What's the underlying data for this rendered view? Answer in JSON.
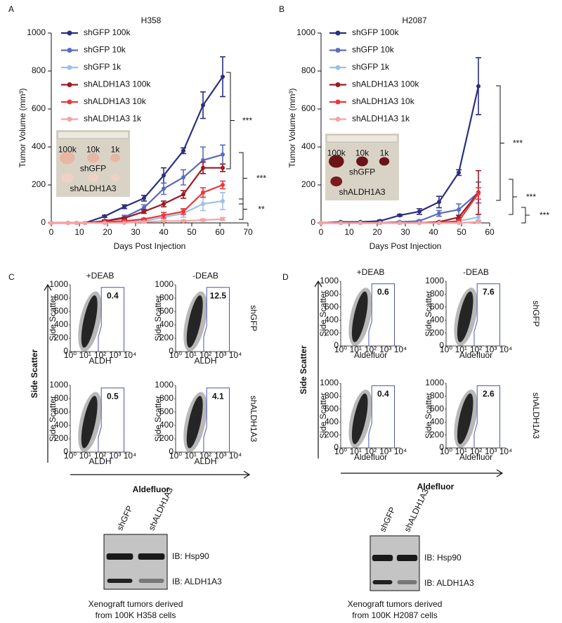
{
  "panel_labels": [
    "A",
    "B",
    "C",
    "D"
  ],
  "chart_data": [
    {
      "type": "line",
      "title": "H358",
      "xlabel": "Days Post Injection",
      "ylabel": "Tumor Volume (mm³)",
      "x": [
        0,
        6,
        9,
        12,
        19,
        26,
        33,
        40,
        47,
        54,
        61
      ],
      "xlim": [
        0,
        70
      ],
      "xticks": [
        0,
        10,
        20,
        30,
        40,
        50,
        60,
        70
      ],
      "ylim": [
        0,
        1000
      ],
      "yticks": [
        0,
        200,
        400,
        600,
        800,
        1000
      ],
      "series": [
        {
          "name": "shGFP 100k",
          "color": "#2b2f7e",
          "values": [
            0,
            0,
            0,
            0,
            35,
            85,
            130,
            250,
            380,
            620,
            770
          ],
          "errors": [
            0,
            0,
            0,
            0,
            5,
            10,
            15,
            40,
            15,
            70,
            105
          ]
        },
        {
          "name": "shGFP 10k",
          "color": "#5b6bbf",
          "values": [
            0,
            0,
            0,
            0,
            10,
            30,
            80,
            180,
            240,
            330,
            360
          ],
          "errors": [
            0,
            0,
            0,
            0,
            5,
            10,
            15,
            30,
            40,
            70,
            50
          ]
        },
        {
          "name": "shGFP 1k",
          "color": "#9cc0e8",
          "values": [
            0,
            0,
            0,
            0,
            0,
            5,
            10,
            30,
            50,
            100,
            115
          ],
          "errors": [
            0,
            0,
            0,
            0,
            0,
            3,
            5,
            15,
            20,
            35,
            45
          ]
        },
        {
          "name": "shALDH1A3 100k",
          "color": "#9b1b24",
          "values": [
            0,
            0,
            0,
            0,
            10,
            25,
            60,
            100,
            150,
            290,
            290
          ],
          "errors": [
            0,
            0,
            0,
            0,
            5,
            5,
            10,
            15,
            20,
            30,
            20
          ]
        },
        {
          "name": "shALDH1A3 10k",
          "color": "#e8393c",
          "values": [
            0,
            0,
            0,
            0,
            5,
            10,
            20,
            40,
            60,
            160,
            200
          ],
          "errors": [
            0,
            0,
            0,
            0,
            3,
            5,
            5,
            15,
            15,
            25,
            20
          ]
        },
        {
          "name": "shALDH1A3 1k",
          "color": "#f4a3a3",
          "values": [
            0,
            0,
            0,
            0,
            0,
            0,
            5,
            10,
            10,
            15,
            20
          ],
          "errors": [
            0,
            0,
            0,
            0,
            0,
            0,
            3,
            5,
            5,
            5,
            8
          ]
        }
      ],
      "annotations": [
        "***",
        "***",
        "**"
      ],
      "inset_labels": [
        "100k",
        "10k",
        "1k",
        "shGFP",
        "shALDH1A3"
      ]
    },
    {
      "type": "line",
      "title": "H2087",
      "xlabel": "Days Post Injection",
      "ylabel": "Tumor Volume (mm³)",
      "x": [
        0,
        7,
        14,
        21,
        28,
        35,
        42,
        49,
        56
      ],
      "xlim": [
        0,
        60
      ],
      "xticks": [
        0,
        10,
        20,
        30,
        40,
        50,
        60
      ],
      "ylim": [
        0,
        1000
      ],
      "yticks": [
        0,
        200,
        400,
        600,
        800,
        1000
      ],
      "series": [
        {
          "name": "shGFP 100k",
          "color": "#2b2f7e",
          "values": [
            0,
            5,
            5,
            10,
            40,
            60,
            110,
            265,
            720
          ],
          "errors": [
            0,
            0,
            0,
            5,
            5,
            15,
            30,
            15,
            150
          ]
        },
        {
          "name": "shGFP 10k",
          "color": "#5b6bbf",
          "values": [
            0,
            0,
            0,
            0,
            5,
            10,
            50,
            70,
            160
          ],
          "errors": [
            0,
            0,
            0,
            0,
            3,
            5,
            15,
            30,
            55
          ]
        },
        {
          "name": "shGFP 1k",
          "color": "#9cc0e8",
          "values": [
            0,
            0,
            0,
            0,
            0,
            0,
            5,
            10,
            30
          ],
          "errors": [
            0,
            0,
            0,
            0,
            0,
            0,
            3,
            5,
            15
          ]
        },
        {
          "name": "shALDH1A3 100k",
          "color": "#9b1b24",
          "values": [
            0,
            0,
            0,
            0,
            0,
            0,
            5,
            30,
            160
          ],
          "errors": [
            0,
            0,
            0,
            0,
            0,
            0,
            3,
            10,
            115
          ]
        },
        {
          "name": "shALDH1A3 10k",
          "color": "#e8393c",
          "values": [
            0,
            0,
            0,
            0,
            0,
            0,
            0,
            10,
            155
          ],
          "errors": [
            0,
            0,
            0,
            0,
            0,
            0,
            0,
            5,
            30
          ]
        },
        {
          "name": "shALDH1A3 1k",
          "color": "#f4a3a3",
          "values": [
            0,
            0,
            0,
            0,
            0,
            0,
            0,
            0,
            5
          ],
          "errors": [
            0,
            0,
            0,
            0,
            0,
            0,
            0,
            0,
            3
          ]
        }
      ],
      "annotations": [
        "***",
        "***",
        "***"
      ],
      "inset_labels": [
        "100k",
        "10k",
        "1k",
        "shGFP",
        "shALDH1A3"
      ]
    }
  ],
  "flow": [
    {
      "columns": [
        "+DEAB",
        "-DEAB"
      ],
      "rows": [
        "shGFP",
        "shALDH1A3"
      ],
      "gates": [
        [
          0.4,
          12.5
        ],
        [
          0.5,
          4.1
        ]
      ],
      "plot_y_title": "Side Scatter",
      "plot_x_title": "ALDH",
      "yticks": [
        0,
        200,
        400,
        600,
        800,
        1000
      ],
      "xticks": [
        "10⁰",
        "10¹",
        "10²",
        "10³",
        "10⁴"
      ],
      "y_label": "Side Scatter",
      "x_label": "Aldefluor"
    },
    {
      "columns": [
        "+DEAB",
        "-DEAB"
      ],
      "rows": [
        "shGFP",
        "shALDH1A3"
      ],
      "gates": [
        [
          0.6,
          7.6
        ],
        [
          0.4,
          2.6
        ]
      ],
      "plot_y_title": "Side Scatter",
      "plot_x_title": "Aldefluor",
      "yticks": [
        0,
        200,
        400,
        600,
        800,
        1000
      ],
      "xticks": [
        "10⁰",
        "10¹",
        "10²",
        "10³",
        "10⁴"
      ],
      "y_label": "Side Scatter",
      "x_label": "Aldefluor"
    }
  ],
  "blots": [
    {
      "lanes": [
        "shGFP",
        "shALDH1A3"
      ],
      "bands": [
        "IB: Hsp90",
        "IB: ALDH1A3"
      ],
      "caption": [
        "Xenograft tumors derived",
        "from 100K H358 cells"
      ]
    },
    {
      "lanes": [
        "shGFP",
        "shALDH1A3"
      ],
      "bands": [
        "IB: Hsp90",
        "IB: ALDH1A3"
      ],
      "caption": [
        "Xenograft tumors derived",
        "from 100K H2087 cells"
      ]
    }
  ]
}
